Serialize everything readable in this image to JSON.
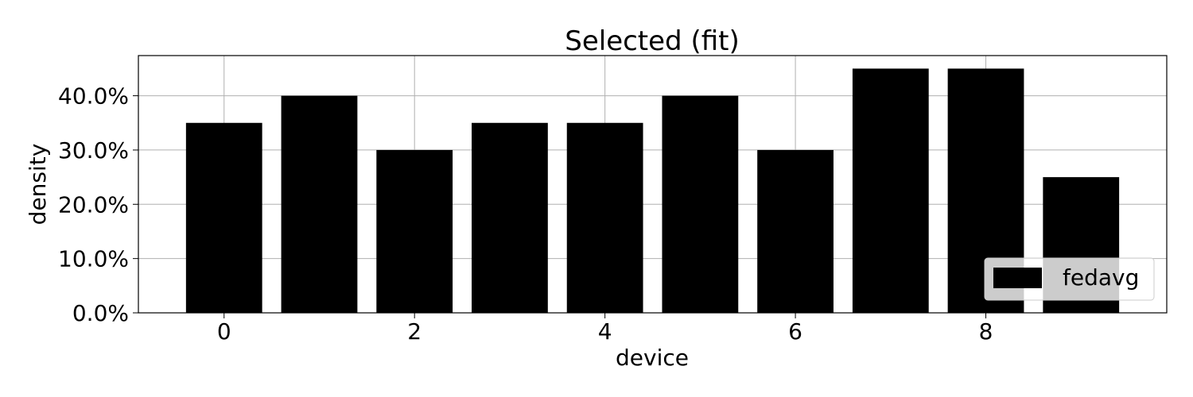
{
  "chart_data": {
    "type": "bar",
    "title": "Selected (fit)",
    "xlabel": "device",
    "ylabel": "density",
    "x": [
      0,
      1,
      2,
      3,
      4,
      5,
      6,
      7,
      8,
      9
    ],
    "series": [
      {
        "name": "fedavg",
        "values": [
          35,
          40,
          30,
          35,
          35,
          40,
          30,
          45,
          45,
          25
        ]
      }
    ],
    "value_format": "percent",
    "xlim": [
      -0.9,
      9.9
    ],
    "ylim": [
      0,
      47.4
    ],
    "xticks": [
      0,
      2,
      4,
      6,
      8
    ],
    "yticks": [
      0,
      10,
      20,
      30,
      40
    ],
    "xtick_labels": [
      "0",
      "2",
      "4",
      "6",
      "8"
    ],
    "ytick_labels": [
      "0.0%",
      "10.0%",
      "20.0%",
      "30.0%",
      "40.0%"
    ],
    "grid": true,
    "legend_position": "lower-right",
    "colors": {
      "bar": "#000000",
      "grid": "#b0b0b0",
      "axes": "#000000",
      "legend_border": "#cccccc"
    }
  }
}
